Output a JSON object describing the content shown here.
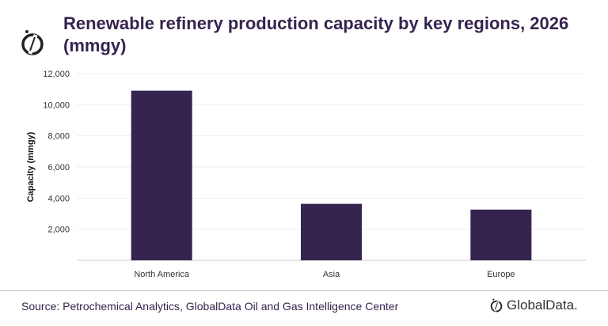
{
  "title": "Renewable refinery production capacity by key regions, 2026 (mmgy)",
  "source": "Source: Petrochemical Analytics, GlobalData Oil and Gas Intelligence Center",
  "brand": "GlobalData.",
  "colors": {
    "bar": "#35244f",
    "title": "#35244f",
    "grid": "#eeeeee"
  },
  "chart_data": {
    "type": "bar",
    "categories": [
      "North America",
      "Asia",
      "Europe"
    ],
    "values": [
      10900,
      3630,
      3260
    ],
    "xlabel": "",
    "ylabel": "Capacity  (mmgy)",
    "ylim": [
      0,
      12000
    ],
    "yticks": [
      2000,
      4000,
      6000,
      8000,
      10000,
      12000
    ],
    "ytick_labels": [
      "2,000",
      "4,000",
      "6,000",
      "8,000",
      "10,000",
      "12,000"
    ],
    "grid": true,
    "legend": "none"
  }
}
